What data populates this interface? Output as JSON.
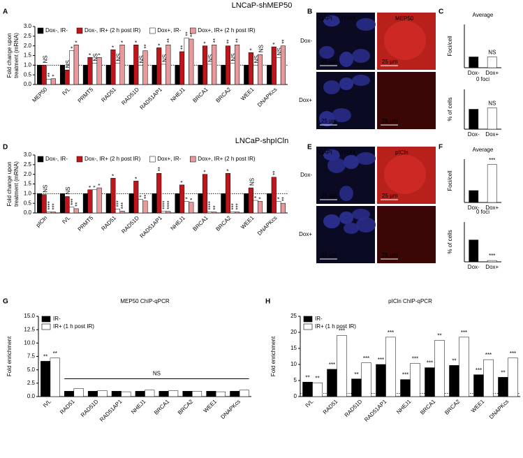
{
  "figure": {
    "titles": [
      "LNCaP-shMEP50",
      "LNCaP-shpICln"
    ],
    "panels": [
      "A",
      "B",
      "C",
      "D",
      "E",
      "F",
      "G",
      "H"
    ]
  },
  "images": [
    {
      "channels": [
        "DAPI",
        "γH2AX",
        "MEP50"
      ],
      "rows": [
        "Dox-",
        "Dox+"
      ],
      "scale_bar": "25 μm"
    },
    {
      "channels": [
        "DAPI",
        "γH2AX",
        "pICln"
      ],
      "rows": [
        "Dox-",
        "Dox+"
      ],
      "scale_bar": "25 μm"
    }
  ],
  "chart_data": [
    {
      "type": "bar",
      "ylabel": [
        "Fold change upon",
        "treatment (mRNA)"
      ],
      "categories": [
        "MEP50",
        "IVL",
        "PRMT5",
        "RAD51",
        "RAD51D",
        "RAD51AP1",
        "NHEJ1",
        "BRCA1",
        "BRCA2",
        "WEE1",
        "DNAPKcs"
      ],
      "ylim": [
        0,
        3
      ],
      "yticks": [
        {
          "value": 0,
          "label": "0.0"
        },
        {
          "value": 0.5,
          "label": "0.5"
        },
        {
          "value": 1,
          "label": "1.0"
        },
        {
          "value": 1.5,
          "label": "1.5"
        },
        {
          "value": 2,
          "label": "2.0"
        },
        {
          "value": 2.5,
          "label": "2.5"
        },
        {
          "value": 3,
          "label": "3.0"
        }
      ],
      "reference_line": 1,
      "series": [
        {
          "name": "Dox-, IR-",
          "color": "#000000",
          "values": [
            1,
            1,
            1,
            1,
            1,
            1,
            1,
            1,
            1,
            1,
            1
          ],
          "annotations": [
            null,
            null,
            null,
            null,
            null,
            null,
            null,
            null,
            null,
            null,
            null
          ]
        },
        {
          "name": "Dox-, IR+ (2 h post IR)",
          "color": "#c0151b",
          "values": [
            1.0,
            0.75,
            1.4,
            1.8,
            2.05,
            1.9,
            1.7,
            2.0,
            2.0,
            1.65,
            1.95
          ],
          "annotations": [
            "NS",
            "NS",
            "*",
            "*",
            "*",
            "*",
            "**",
            "*",
            "**",
            "*",
            "*"
          ]
        },
        {
          "name": "Dox+, IR-",
          "color": "#ffffff",
          "values": [
            0.28,
            1.75,
            1.1,
            1.1,
            1.0,
            1.05,
            2.4,
            1.05,
            1.1,
            1.0,
            1.4
          ],
          "annotations": [
            "**",
            "*",
            "NS",
            "NS",
            "NS",
            "NS",
            "**",
            "NS",
            "NS",
            "NS",
            "NS"
          ]
        },
        {
          "name": "Dox+, IR+ (2 h post IR)",
          "color": "#e8999c",
          "values": [
            0.3,
            2.05,
            1.4,
            2.05,
            1.75,
            2.05,
            2.35,
            2.05,
            2.05,
            1.55,
            2.0
          ],
          "annotations": [
            "*",
            "*",
            "*",
            "*",
            "**",
            "**",
            "**",
            "**",
            "**",
            "NS",
            "**"
          ]
        }
      ]
    },
    {
      "type": "bar",
      "title": "Average",
      "ylabel": [
        "Foci/cell"
      ],
      "categories": [
        "Dox-",
        "Dox+"
      ],
      "ylim": [
        0,
        12
      ],
      "color": "#000000",
      "values": [
        3,
        3
      ],
      "fills": [
        "#000000",
        "#ffffff"
      ],
      "annotations": [
        null,
        "NS"
      ]
    },
    {
      "type": "bar",
      "title": "0 foci",
      "ylabel": [
        "% of cells"
      ],
      "categories": [
        "Dox-",
        "Dox+"
      ],
      "ylim": [
        0,
        60
      ],
      "color": "#000000",
      "values": [
        30,
        32
      ],
      "fills": [
        "#000000",
        "#ffffff"
      ],
      "annotations": [
        null,
        "NS"
      ]
    },
    {
      "type": "bar",
      "ylabel": [
        "Fold change upon",
        "treatment (mRNA)"
      ],
      "categories": [
        "pICln",
        "IVL",
        "PRMT5",
        "RAD51",
        "RAD51D",
        "RAD51AP1",
        "NHEJ1",
        "BRCA1",
        "BRCA2",
        "WEE1",
        "DNAPKcs"
      ],
      "ylim": [
        0,
        3
      ],
      "yticks": [
        {
          "value": 0,
          "label": "0.0"
        },
        {
          "value": 0.5,
          "label": "0.5"
        },
        {
          "value": 1,
          "label": "1.0"
        },
        {
          "value": 1.5,
          "label": "1.5"
        },
        {
          "value": 2,
          "label": "2.0"
        },
        {
          "value": 2.5,
          "label": "2.5"
        },
        {
          "value": 3,
          "label": "3.0"
        }
      ],
      "reference_line": 1,
      "series": [
        {
          "name": "Dox-, IR-",
          "color": "#000000",
          "values": [
            1,
            1,
            1,
            1,
            1,
            1,
            1,
            1,
            1,
            1,
            1
          ],
          "annotations": [
            null,
            null,
            null,
            null,
            null,
            null,
            null,
            null,
            null,
            null,
            null
          ]
        },
        {
          "name": "Dox-, IR+ (2 h post IR)",
          "color": "#c0151b",
          "values": [
            0.95,
            0.85,
            1.2,
            1.8,
            1.65,
            2.05,
            1.45,
            2.0,
            2.05,
            1.3,
            1.85
          ],
          "annotations": [
            "NS",
            "NS",
            "*",
            "*",
            "*",
            "**",
            "*",
            "*",
            "*",
            "NS",
            "**"
          ]
        },
        {
          "name": "Dox+, IR-",
          "color": "#ffffff",
          "values": [
            0.05,
            0.3,
            1.2,
            0.2,
            0.7,
            0.08,
            0.6,
            0.05,
            0.05,
            0.65,
            0.6
          ],
          "annotations": [
            "****",
            "***",
            "*",
            "***",
            "*",
            "****",
            "*",
            "****",
            "***",
            "*",
            "*"
          ]
        },
        {
          "name": "Dox+, IR+ (2 h post IR)",
          "color": "#e8999c",
          "values": [
            0.05,
            0.22,
            1.3,
            0.1,
            0.62,
            0.08,
            0.55,
            0.05,
            0.05,
            0.6,
            0.5
          ],
          "annotations": [
            "***",
            "**",
            "*",
            "***",
            "**",
            "****",
            "*",
            "**",
            "***",
            "*",
            "**"
          ]
        }
      ]
    },
    {
      "type": "bar",
      "title": "Average",
      "ylabel": [
        "Foci/cell"
      ],
      "categories": [
        "Dox-",
        "Dox+"
      ],
      "ylim": [
        0,
        12
      ],
      "color": "#000000",
      "values": [
        3.3,
        10.5
      ],
      "fills": [
        "#000000",
        "#ffffff"
      ],
      "annotations": [
        null,
        "***"
      ]
    },
    {
      "type": "bar",
      "title": "0 foci",
      "ylabel": [
        "% of cells"
      ],
      "categories": [
        "Dox-",
        "Dox+"
      ],
      "ylim": [
        0,
        60
      ],
      "color": "#000000",
      "values": [
        33,
        2
      ],
      "fills": [
        "#000000",
        "#ffffff"
      ],
      "annotations": [
        null,
        "***"
      ]
    },
    {
      "type": "bar",
      "title": "MEP50 ChIP-qPCR",
      "ylabel": [
        "Fold enrichment"
      ],
      "categories": [
        "IVL",
        "RAD51",
        "RAD51D",
        "RAD51AP1",
        "NHEJ1",
        "BRCA1",
        "BRCA2",
        "WEE1",
        "DNAPKcs"
      ],
      "ylim": [
        0,
        15
      ],
      "yticks": [
        {
          "value": 0,
          "label": "0.0"
        },
        {
          "value": 2.5,
          "label": "2.5"
        },
        {
          "value": 5,
          "label": "5.0"
        },
        {
          "value": 7.5,
          "label": "7.5"
        },
        {
          "value": 10,
          "label": "10.0"
        },
        {
          "value": 12.5,
          "label": "12.5"
        },
        {
          "value": 15,
          "label": "15.0"
        }
      ],
      "bracket_label": "NS",
      "series": [
        {
          "name": "IR-",
          "color": "#000000",
          "values": [
            6.6,
            1.0,
            1.0,
            1.0,
            1.0,
            1.0,
            1.0,
            1.0,
            1.0
          ],
          "annotations": [
            "**",
            null,
            null,
            null,
            null,
            null,
            null,
            null,
            null
          ]
        },
        {
          "name": "IR+ (1 h post IR)",
          "color": "#ffffff",
          "values": [
            7.2,
            1.5,
            1.1,
            0.9,
            1.2,
            1.1,
            1.0,
            0.9,
            1.2
          ],
          "annotations": [
            "**",
            null,
            null,
            null,
            null,
            null,
            null,
            null,
            null
          ]
        }
      ]
    },
    {
      "type": "bar",
      "title": "pICln ChIP-qPCR",
      "ylabel": [
        "Fold enrichment"
      ],
      "categories": [
        "IVL",
        "RAD51",
        "RAD51D",
        "RAD51AP1",
        "NHEJ1",
        "BRCA1",
        "BRCA2",
        "WEE1",
        "DNAPKcs"
      ],
      "ylim": [
        0,
        25
      ],
      "yticks": [
        0,
        5,
        10,
        15,
        20,
        25
      ],
      "reference_line": 1,
      "series": [
        {
          "name": "IR-",
          "color": "#000000",
          "values": [
            4.5,
            8.5,
            5.5,
            10,
            5.3,
            9,
            9.7,
            6.8,
            6
          ],
          "annotations": [
            "**",
            "***",
            "**",
            "***",
            "***",
            "***",
            "**",
            "***",
            "**"
          ]
        },
        {
          "name": "IR+ (1 h post IR)",
          "color": "#ffffff",
          "values": [
            4.3,
            19,
            10.5,
            18.5,
            10.3,
            17.5,
            18.5,
            11.5,
            12
          ],
          "annotations": [
            "**",
            "***",
            "***",
            "***",
            "***",
            "**",
            "***",
            "***",
            "***"
          ]
        }
      ]
    }
  ]
}
